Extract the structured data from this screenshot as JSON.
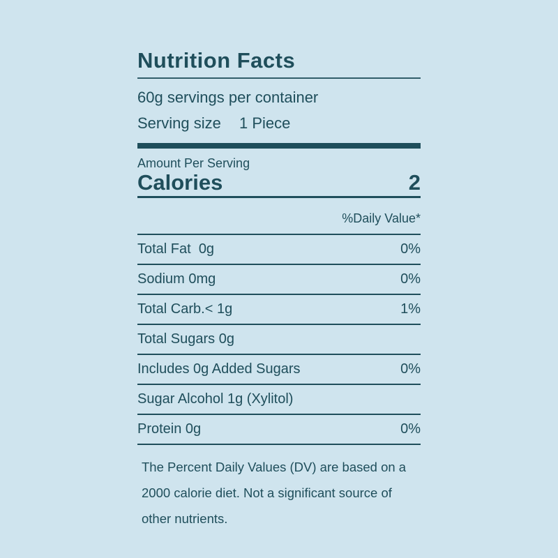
{
  "colors": {
    "background": "#cfe4ee",
    "ink": "#1f4e5b"
  },
  "label": {
    "title": "Nutrition Facts",
    "servings_per_container": "60g servings per container",
    "serving_size_label": "Serving size",
    "serving_size_value": "1 Piece",
    "amount_per_serving": "Amount Per Serving",
    "calories_label": "Calories",
    "calories_value": "2",
    "daily_value_header": "%Daily Value*",
    "rows": [
      {
        "name": "Total Fat  0g",
        "dv": "0%"
      },
      {
        "name": "Sodium 0mg",
        "dv": "0%"
      },
      {
        "name": "Total Carb.< 1g",
        "dv": "1%"
      },
      {
        "name": "Total Sugars 0g",
        "dv": ""
      },
      {
        "name": "Includes 0g Added Sugars",
        "dv": "0%"
      },
      {
        "name": "Sugar Alcohol 1g (Xylitol)",
        "dv": ""
      },
      {
        "name": "Protein 0g",
        "dv": "0%"
      }
    ],
    "footnote_lines": [
      "The Percent Daily Values (DV) are based on a",
      "2000 calorie diet. Not a significant source of",
      "other nutrients."
    ]
  }
}
